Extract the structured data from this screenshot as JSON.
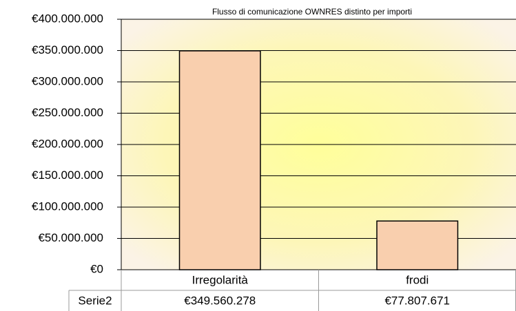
{
  "chart_data": {
    "type": "bar",
    "title": "Flusso di comunicazione OWNRES distinto per importi",
    "categories": [
      "Irregolarità",
      "frodi"
    ],
    "series": [
      {
        "name": "Serie2",
        "color": "#f9cfae",
        "values": [
          349560278,
          77807671
        ],
        "value_labels": [
          "€349.560.278",
          "€77.807.671"
        ]
      }
    ],
    "ylim": [
      0,
      400000000
    ],
    "yticks": [
      {
        "value": 0,
        "label": "€0"
      },
      {
        "value": 50000000,
        "label": "€50.000.000"
      },
      {
        "value": 100000000,
        "label": "€100.000.000"
      },
      {
        "value": 150000000,
        "label": "€150.000.000"
      },
      {
        "value": 200000000,
        "label": "€200.000.000"
      },
      {
        "value": 250000000,
        "label": "€250.000.000"
      },
      {
        "value": 300000000,
        "label": "€300.000.000"
      },
      {
        "value": 350000000,
        "label": "€350.000.000"
      },
      {
        "value": 400000000,
        "label": "€400.000.000"
      }
    ],
    "grid": true
  }
}
